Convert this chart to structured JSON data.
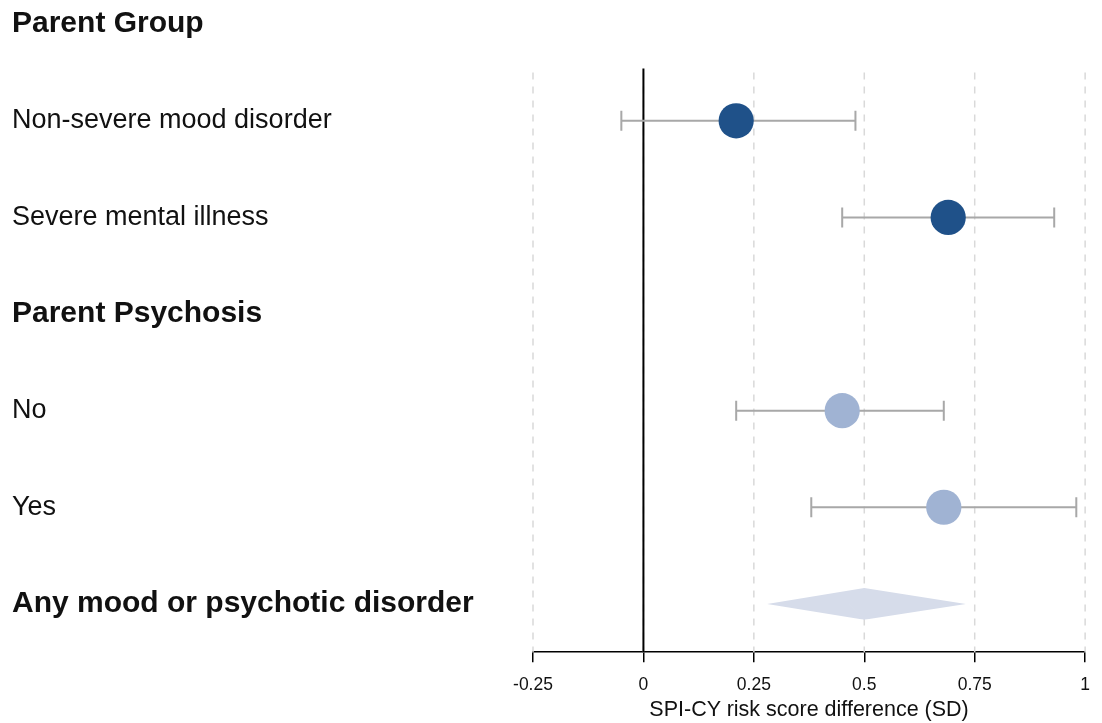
{
  "chart_data": {
    "type": "scatter",
    "orientation": "horizontal",
    "categories": [
      "Parent Group",
      "Non-severe mood disorder",
      "Severe mental illness",
      "Parent Psychosis",
      "No",
      "Yes",
      "Any mood or psychotic disorder"
    ],
    "series": [
      {
        "color": "#1f5189",
        "values": [
          null,
          0.21,
          0.69,
          null,
          null,
          null,
          null
        ],
        "errors": [
          null,
          [
            -0.05,
            0.48
          ],
          [
            0.45,
            0.93
          ],
          null,
          null,
          null,
          null
        ]
      },
      {
        "color": "#a0b3d3",
        "values": [
          null,
          null,
          null,
          null,
          0.45,
          0.68,
          null
        ],
        "errors": [
          null,
          null,
          null,
          null,
          [
            0.21,
            0.68
          ],
          [
            0.38,
            0.98
          ],
          null
        ]
      },
      {
        "color": "#d6dcea",
        "marker": "diamond",
        "values": [
          null,
          null,
          null,
          null,
          null,
          null,
          0.5
        ],
        "errors": [
          null,
          null,
          null,
          null,
          null,
          null,
          [
            0.28,
            0.73
          ]
        ]
      }
    ],
    "xlim": [
      -0.25,
      1
    ],
    "xticks": [
      -0.25,
      0,
      0.25,
      0.5,
      0.75,
      1
    ],
    "xlabel": "SPI-CY risk score difference (SD)",
    "grid": "x",
    "marker": "circle",
    "ref_lines": [
      {
        "axis": "x",
        "value": 0,
        "color": "#000000"
      }
    ]
  }
}
